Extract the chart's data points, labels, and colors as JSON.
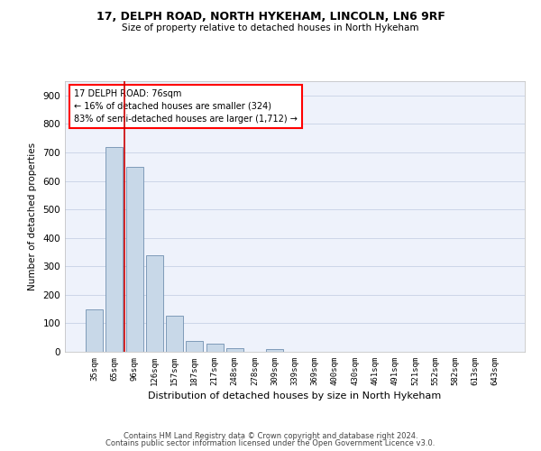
{
  "title_line1": "17, DELPH ROAD, NORTH HYKEHAM, LINCOLN, LN6 9RF",
  "title_line2": "Size of property relative to detached houses in North Hykeham",
  "xlabel": "Distribution of detached houses by size in North Hykeham",
  "ylabel": "Number of detached properties",
  "categories": [
    "35sqm",
    "65sqm",
    "96sqm",
    "126sqm",
    "157sqm",
    "187sqm",
    "217sqm",
    "248sqm",
    "278sqm",
    "309sqm",
    "339sqm",
    "369sqm",
    "400sqm",
    "430sqm",
    "461sqm",
    "491sqm",
    "521sqm",
    "552sqm",
    "582sqm",
    "613sqm",
    "643sqm"
  ],
  "values": [
    150,
    720,
    650,
    340,
    128,
    38,
    28,
    12,
    0,
    10,
    0,
    0,
    0,
    0,
    0,
    0,
    0,
    0,
    0,
    0,
    0
  ],
  "bar_color": "#c8d8e8",
  "bar_edge_color": "#7090b0",
  "grid_color": "#ccd6e8",
  "background_color": "#eef2fb",
  "ylim": [
    0,
    950
  ],
  "yticks": [
    0,
    100,
    200,
    300,
    400,
    500,
    600,
    700,
    800,
    900
  ],
  "annotation_box_text": "17 DELPH ROAD: 76sqm\n← 16% of detached houses are smaller (324)\n83% of semi-detached houses are larger (1,712) →",
  "vline_x": 1.5,
  "vline_color": "#cc0000",
  "footer1": "Contains HM Land Registry data © Crown copyright and database right 2024.",
  "footer2": "Contains public sector information licensed under the Open Government Licence v3.0."
}
